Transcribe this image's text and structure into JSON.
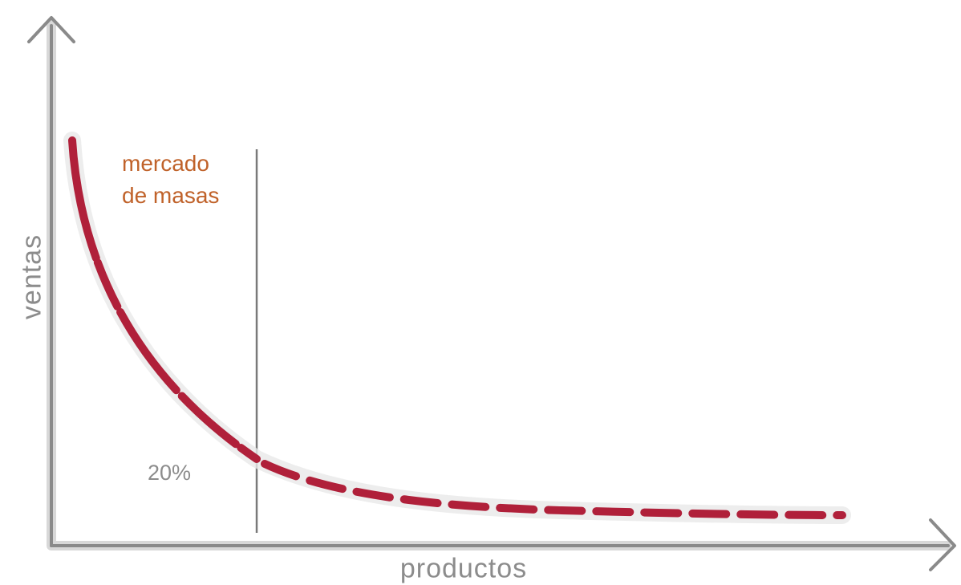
{
  "diagram": {
    "y_axis_label": "ventas",
    "x_axis_label": "productos",
    "segment_label_line1": "mercado",
    "segment_label_line2": "de masas",
    "split_label": "20%",
    "curve_color": "#b0203a",
    "segment_label_color": "#c0622a",
    "axis_color": "#8a8a8a"
  }
}
